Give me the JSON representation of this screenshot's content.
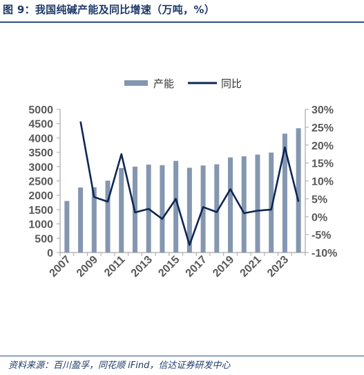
{
  "title": "图 9：我国纯碱产能及同比增速（万吨，%）",
  "source": "资料来源：百川盈孚，同花顺 iFind，信达证券研发中心",
  "colors": {
    "bar": "#8496b0",
    "line": "#0d2652",
    "axis": "#a6a6a6",
    "title": "#1f3a68"
  },
  "chart_data": {
    "type": "bar",
    "title": "我国纯碱产能及同比增速（万吨，%）",
    "x": [
      2007,
      2008,
      2009,
      2010,
      2011,
      2012,
      2013,
      2014,
      2015,
      2016,
      2017,
      2018,
      2019,
      2020,
      2021,
      2022,
      2023,
      2024
    ],
    "x_tick_labels": [
      "2007",
      "2009",
      "2011",
      "2013",
      "2015",
      "2017",
      "2019",
      "2021",
      "2023"
    ],
    "series": [
      {
        "name": "产能",
        "type": "bar",
        "axis": "left",
        "values": [
          1800,
          2270,
          2280,
          2510,
          2950,
          3000,
          3070,
          3050,
          3200,
          2960,
          3040,
          3080,
          3320,
          3360,
          3420,
          3490,
          4150,
          4340
        ]
      },
      {
        "name": "同比",
        "type": "line",
        "axis": "right",
        "values": [
          null,
          26.6,
          5.5,
          4.2,
          17.5,
          1.2,
          2.2,
          -0.6,
          5.0,
          -7.9,
          2.7,
          1.3,
          7.7,
          1.0,
          1.7,
          2.0,
          19.4,
          4.2
        ]
      }
    ],
    "yleft": {
      "lim": [
        0,
        5000
      ],
      "ticks": [
        0,
        500,
        1000,
        1500,
        2000,
        2500,
        3000,
        3500,
        4000,
        4500,
        5000
      ]
    },
    "yright": {
      "lim": [
        -10,
        30
      ],
      "ticks": [
        "-10%",
        "-5%",
        "0%",
        "5%",
        "10%",
        "15%",
        "20%",
        "25%",
        "30%"
      ]
    },
    "legend": [
      "产能",
      "同比"
    ],
    "legend_position": "top-center",
    "grid": false
  }
}
